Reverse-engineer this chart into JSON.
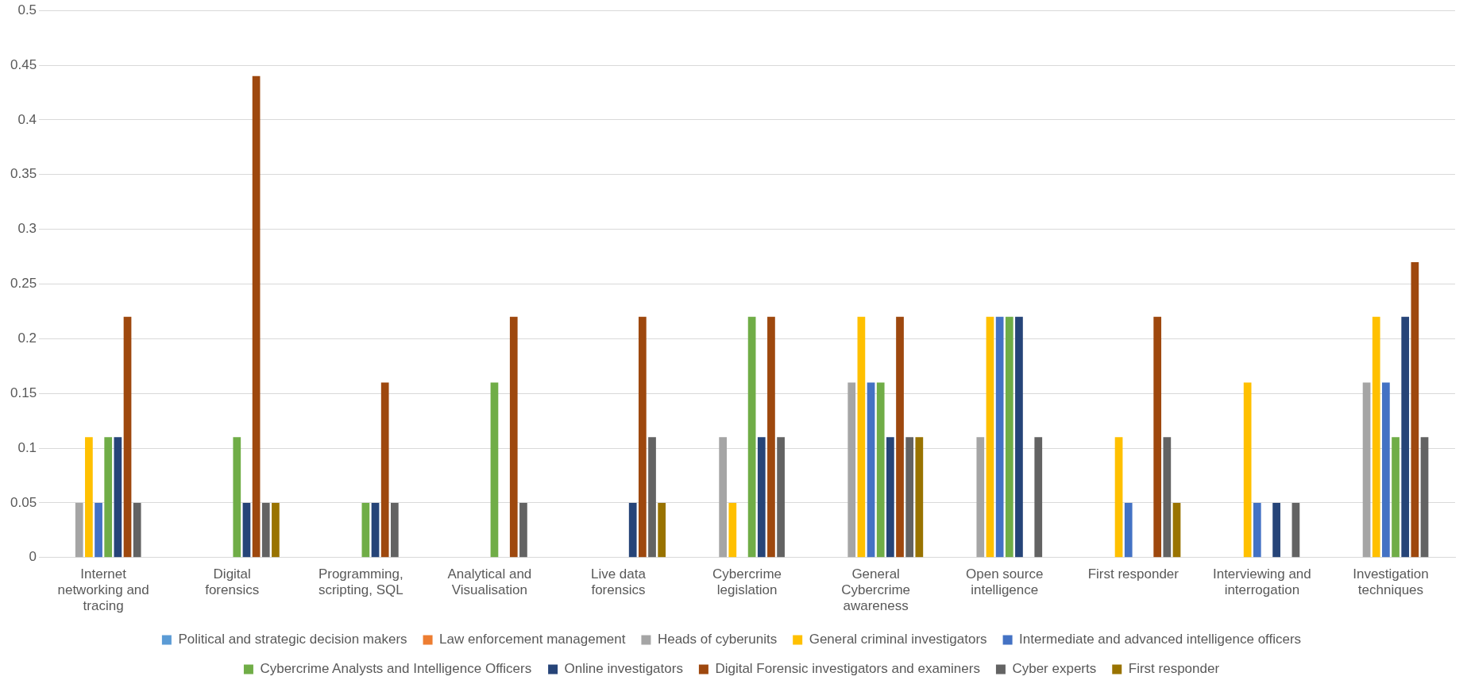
{
  "chart_data": {
    "type": "bar",
    "categories": [
      "Internet networking and tracing",
      "Digital forensics",
      "Programming, scripting, SQL",
      "Analytical and Visualisation",
      "Live data forensics",
      "Cybercrime legislation",
      "General Cybercrime awareness",
      "Open source intelligence",
      "First responder",
      "Interviewing and interrogation",
      "Investigation techniques"
    ],
    "series": [
      {
        "name": "Political and strategic decision makers",
        "color": "#5b9bd5",
        "values": [
          0,
          0,
          0,
          0,
          0,
          0,
          0,
          0,
          0,
          0,
          0
        ]
      },
      {
        "name": "Law enforcement management",
        "color": "#ed7d31",
        "values": [
          0,
          0,
          0,
          0,
          0,
          0,
          0,
          0,
          0,
          0,
          0
        ]
      },
      {
        "name": "Heads of cyberunits",
        "color": "#a5a5a5",
        "values": [
          0.05,
          0,
          0,
          0,
          0,
          0.11,
          0.16,
          0.11,
          0,
          0,
          0.16
        ]
      },
      {
        "name": "General criminal investigators",
        "color": "#ffc000",
        "values": [
          0.11,
          0,
          0,
          0,
          0,
          0.05,
          0.22,
          0.22,
          0.11,
          0.16,
          0.22
        ]
      },
      {
        "name": "Intermediate and advanced intelligence officers",
        "color": "#4472c4",
        "values": [
          0.05,
          0,
          0,
          0,
          0,
          0,
          0.16,
          0.22,
          0.05,
          0.05,
          0.16
        ]
      },
      {
        "name": "Cybercrime Analysts and Intelligence Officers",
        "color": "#70ad47",
        "values": [
          0.11,
          0.11,
          0.05,
          0.16,
          0,
          0.22,
          0.16,
          0.22,
          0,
          0,
          0.11
        ]
      },
      {
        "name": "Online investigators",
        "color": "#264478",
        "values": [
          0.11,
          0.05,
          0.05,
          0,
          0.05,
          0.11,
          0.11,
          0.22,
          0,
          0.05,
          0.22
        ]
      },
      {
        "name": "Digital Forensic investigators and examiners",
        "color": "#9e480e",
        "values": [
          0.22,
          0.44,
          0.16,
          0.22,
          0.22,
          0.22,
          0.22,
          0,
          0.22,
          0,
          0.27
        ]
      },
      {
        "name": "Cyber experts",
        "color": "#636363",
        "values": [
          0.05,
          0.05,
          0.05,
          0.05,
          0.11,
          0.11,
          0.11,
          0.11,
          0.11,
          0.05,
          0.11
        ]
      },
      {
        "name": "First responder",
        "color": "#997300",
        "values": [
          0,
          0.05,
          0,
          0,
          0.05,
          0,
          0.11,
          0,
          0.05,
          0,
          0
        ]
      }
    ],
    "ylim": [
      0,
      0.5
    ],
    "yticks": [
      0,
      0.05,
      0.1,
      0.15,
      0.2,
      0.25,
      0.3,
      0.35,
      0.4,
      0.45,
      0.5
    ],
    "grid": "y",
    "legend": "bottom"
  }
}
